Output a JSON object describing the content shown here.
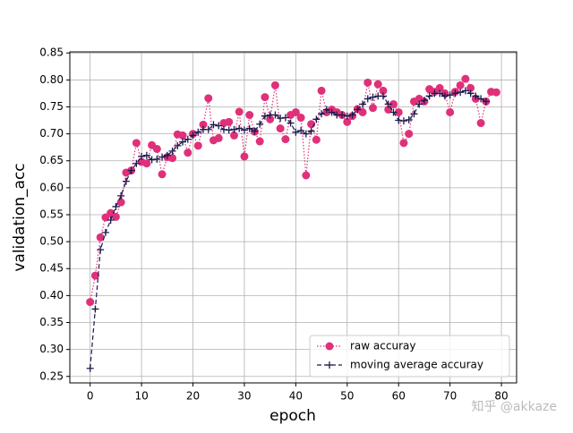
{
  "chart_data": {
    "type": "line",
    "xlabel": "epoch",
    "ylabel": "validation_acc",
    "watermark": "知乎 @akkaze",
    "x": [
      0,
      1,
      2,
      3,
      4,
      5,
      6,
      7,
      8,
      9,
      10,
      11,
      12,
      13,
      14,
      15,
      16,
      17,
      18,
      19,
      20,
      21,
      22,
      23,
      24,
      25,
      26,
      27,
      28,
      29,
      30,
      31,
      32,
      33,
      34,
      35,
      36,
      37,
      38,
      39,
      40,
      41,
      42,
      43,
      44,
      45,
      46,
      47,
      48,
      49,
      50,
      51,
      52,
      53,
      54,
      55,
      56,
      57,
      58,
      59,
      60,
      61,
      62,
      63,
      64,
      65,
      66,
      67,
      68,
      69,
      70,
      71,
      72,
      73,
      74,
      75,
      76,
      77,
      78,
      79
    ],
    "series": [
      {
        "name": "raw accuray",
        "color": "#e0307a",
        "marker": "circle",
        "linestyle": "dotted",
        "values": [
          0.388,
          0.437,
          0.508,
          0.545,
          0.553,
          0.546,
          0.573,
          0.628,
          0.632,
          0.683,
          0.648,
          0.645,
          0.679,
          0.672,
          0.625,
          0.657,
          0.655,
          0.699,
          0.697,
          0.665,
          0.7,
          0.678,
          0.717,
          0.766,
          0.688,
          0.692,
          0.72,
          0.722,
          0.697,
          0.741,
          0.658,
          0.735,
          0.704,
          0.686,
          0.768,
          0.727,
          0.79,
          0.71,
          0.69,
          0.735,
          0.74,
          0.73,
          0.623,
          0.718,
          0.689,
          0.78,
          0.74,
          0.745,
          0.74,
          0.735,
          0.722,
          0.733,
          0.746,
          0.74,
          0.795,
          0.748,
          0.792,
          0.78,
          0.745,
          0.755,
          0.74,
          0.683,
          0.7,
          0.76,
          0.765,
          0.76,
          0.783,
          0.778,
          0.785,
          0.775,
          0.74,
          0.778,
          0.79,
          0.802,
          0.785,
          0.765,
          0.72,
          0.76,
          0.778,
          0.777
        ]
      },
      {
        "name": "moving average accuray",
        "color": "#1a1a4e",
        "marker": "plus",
        "linestyle": "dashed",
        "values": [
          0.265,
          0.375,
          0.485,
          0.517,
          0.54,
          0.565,
          0.585,
          0.612,
          0.632,
          0.645,
          0.658,
          0.66,
          0.652,
          0.653,
          0.657,
          0.66,
          0.668,
          0.678,
          0.685,
          0.69,
          0.697,
          0.703,
          0.708,
          0.708,
          0.717,
          0.715,
          0.708,
          0.707,
          0.708,
          0.71,
          0.707,
          0.71,
          0.705,
          0.718,
          0.733,
          0.735,
          0.735,
          0.729,
          0.73,
          0.72,
          0.703,
          0.706,
          0.7,
          0.705,
          0.727,
          0.737,
          0.745,
          0.74,
          0.735,
          0.735,
          0.733,
          0.735,
          0.745,
          0.755,
          0.765,
          0.768,
          0.77,
          0.77,
          0.755,
          0.74,
          0.725,
          0.724,
          0.726,
          0.737,
          0.755,
          0.762,
          0.77,
          0.775,
          0.775,
          0.77,
          0.772,
          0.775,
          0.777,
          0.78,
          0.775,
          0.77,
          0.765,
          0.76,
          null,
          null
        ]
      }
    ],
    "xlim": [
      -3.95,
      82.95
    ],
    "xticks": [
      0,
      10,
      20,
      30,
      40,
      50,
      60,
      70,
      80
    ],
    "ylim": [
      0.238,
      0.852
    ],
    "yticks": [
      0.25,
      {
        "value": 0.3,
        "label": "0.30"
      },
      0.35,
      {
        "value": 0.4,
        "label": "0.40"
      },
      0.45,
      {
        "value": 0.5,
        "label": "0.50"
      },
      0.55,
      {
        "value": 0.6,
        "label": "0.60"
      },
      0.65,
      {
        "value": 0.7,
        "label": "0.70"
      },
      0.75,
      {
        "value": 0.8,
        "label": "0.80"
      },
      0.85
    ],
    "grid": true,
    "legend": "lower right"
  }
}
